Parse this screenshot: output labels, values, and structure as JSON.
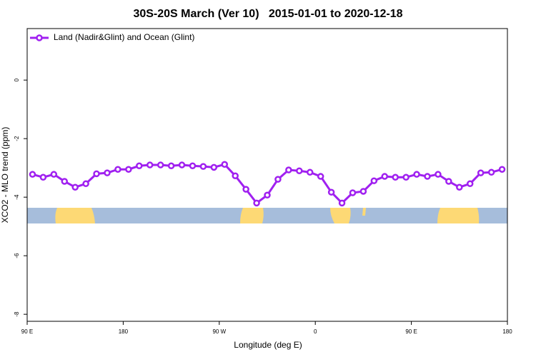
{
  "chart_data": {
    "type": "line",
    "title": "30S-20S March (Ver 10)   2015-01-01 to 2020-12-18",
    "xlabel": "Longitude (deg E)",
    "ylabel": "XCO2 - MLO trend (ppm)",
    "x": [
      95,
      105,
      115,
      125,
      135,
      145,
      155,
      165,
      175,
      185,
      195,
      205,
      215,
      225,
      235,
      245,
      255,
      265,
      275,
      285,
      295,
      305,
      315,
      325,
      335,
      345,
      355,
      365,
      375,
      385,
      395,
      405,
      415,
      425,
      435,
      445,
      455,
      465,
      475,
      485,
      495,
      505,
      515,
      525,
      535
    ],
    "series": [
      {
        "name": "Land (Nadir&Glint) and Ocean (Glint)",
        "color": "#a020f0",
        "values": [
          -3.22,
          -3.32,
          -3.22,
          -3.46,
          -3.66,
          -3.54,
          -3.2,
          -3.17,
          -3.05,
          -3.05,
          -2.93,
          -2.9,
          -2.9,
          -2.93,
          -2.9,
          -2.93,
          -2.95,
          -2.98,
          -2.88,
          -3.27,
          -3.73,
          -4.2,
          -3.93,
          -3.39,
          -3.07,
          -3.1,
          -3.15,
          -3.29,
          -3.83,
          -4.2,
          -3.85,
          -3.8,
          -3.44,
          -3.29,
          -3.32,
          -3.32,
          -3.22,
          -3.29,
          -3.22,
          -3.46,
          -3.66,
          -3.54,
          -3.17,
          -3.15,
          -3.05
        ]
      }
    ],
    "xlim": [
      90,
      540
    ],
    "xticks": [
      {
        "value": 90,
        "label": "90 E"
      },
      {
        "value": 180,
        "label": "180"
      },
      {
        "value": 270,
        "label": "90 W"
      },
      {
        "value": 360,
        "label": "0"
      },
      {
        "value": 450,
        "label": "90 E"
      },
      {
        "value": 540,
        "label": "180"
      }
    ],
    "ylim": [
      -8.24,
      1.76
    ],
    "yticks": [
      0,
      -2,
      -4,
      -6,
      -8
    ],
    "legend": "top-left"
  }
}
